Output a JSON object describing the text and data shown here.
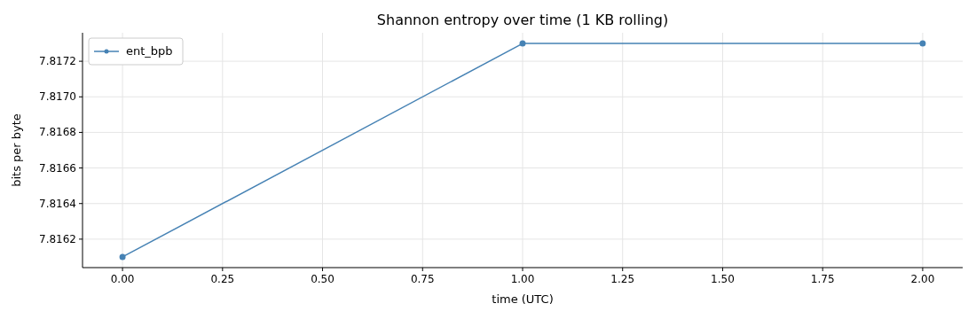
{
  "chart_data": {
    "type": "line",
    "title": "Shannon entropy over time (1 KB rolling)",
    "xlabel": "time (UTC)",
    "ylabel": "bits per byte",
    "x": [
      0,
      1,
      2
    ],
    "series": [
      {
        "name": "ent_bpb",
        "color": "#4682b4",
        "values": [
          7.8161,
          7.8173,
          7.8173
        ]
      }
    ],
    "xlim": [
      -0.1,
      2.1
    ],
    "xticks": [
      {
        "value": 0,
        "label": "0.00"
      },
      {
        "value": 0.25,
        "label": "0.25"
      },
      {
        "value": 0.5,
        "label": "0.50"
      },
      {
        "value": 0.75,
        "label": "0.75"
      },
      {
        "value": 1,
        "label": "1.00"
      },
      {
        "value": 1.25,
        "label": "1.25"
      },
      {
        "value": 1.5,
        "label": "1.50"
      },
      {
        "value": 1.75,
        "label": "1.75"
      },
      {
        "value": 2,
        "label": "2.00"
      }
    ],
    "ylim": [
      7.81604,
      7.81736
    ],
    "yticks": [
      7.8162,
      7.8164,
      7.8166,
      7.8168,
      {
        "value": 7.817,
        "label": "7.8170"
      },
      7.8172
    ],
    "grid": true,
    "legend": "top left",
    "marker": "circle",
    "line_style": "solid"
  }
}
